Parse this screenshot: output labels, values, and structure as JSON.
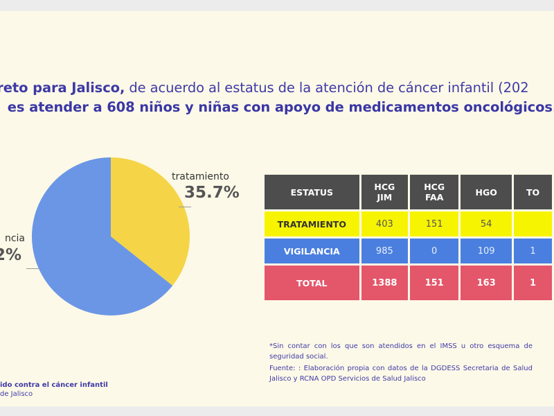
{
  "headline": {
    "line1_bold": "l reto para Jalisco,",
    "line1_rest": " de acuerdo al estatus de la atención de cáncer infantil (202",
    "line2": "es atender a 608 niños y niñas con apoyo de medicamentos oncológicos."
  },
  "chart_data": {
    "type": "pie",
    "slices": [
      {
        "label": "tratamiento",
        "pct_label": "35.7%",
        "value": 35.7,
        "color": "#f5d547"
      },
      {
        "label": "ncia",
        "pct_label": "2%",
        "value": 64.3,
        "color": "#6b96e6"
      }
    ]
  },
  "table": {
    "headers": [
      "ESTATUS",
      "HCG\nJIM",
      "HCG\nFAA",
      "HGO",
      "TO"
    ],
    "rows": [
      {
        "label": "TRATAMIENTO",
        "cells": [
          "403",
          "151",
          "54",
          ""
        ]
      },
      {
        "label": "VIGILANCIA",
        "cells": [
          "985",
          "0",
          "109",
          "1"
        ]
      },
      {
        "label": "TOTAL",
        "cells": [
          "1388",
          "151",
          "163",
          "1"
        ]
      }
    ],
    "colors": {
      "header": "#4d4d4d",
      "tratamiento": "#f7f401",
      "vigilancia": "#4a7fdf",
      "total": "#e4566a"
    }
  },
  "notes": {
    "note1": "*Sin contar con los que son atendidos en el IMSS u otro esquema de seguridad social.",
    "note2": "Fuente: : Elaboración propia con datos de la DGDESS Secretaria de Salud Jalisco y RCNA OPD Servicios de Salud Jalisco"
  },
  "footer": {
    "line1": "ido contra el cáncer infantil",
    "line2": "de Jalisco"
  }
}
